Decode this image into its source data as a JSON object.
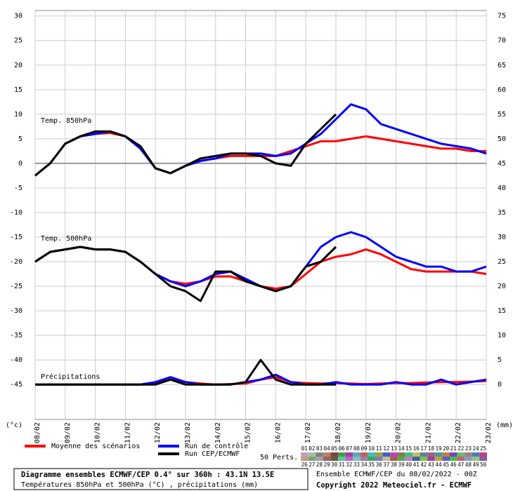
{
  "chart_data": {
    "type": "line",
    "x": [
      0,
      0.5,
      1,
      1.5,
      2,
      2.5,
      3,
      3.5,
      4,
      4.5,
      5,
      5.5,
      6,
      6.5,
      7,
      7.5,
      8,
      8.5,
      9,
      9.5,
      10,
      10.5,
      11,
      11.5,
      12,
      12.5,
      13,
      13.5,
      14,
      14.5,
      15
    ],
    "xlim": [
      0,
      15
    ],
    "xticks": [
      {
        "value": 0,
        "label": "08/02"
      },
      {
        "value": 1,
        "label": "09/02"
      },
      {
        "value": 2,
        "label": "10/02"
      },
      {
        "value": 3,
        "label": "11/02"
      },
      {
        "value": 4,
        "label": "12/02"
      },
      {
        "value": 5,
        "label": "13/02"
      },
      {
        "value": 6,
        "label": "14/02"
      },
      {
        "value": 7,
        "label": "15/02"
      },
      {
        "value": 8,
        "label": "16/02"
      },
      {
        "value": 9,
        "label": "17/02"
      },
      {
        "value": 10,
        "label": "18/02"
      },
      {
        "value": 11,
        "label": "19/02"
      },
      {
        "value": 12,
        "label": "20/02"
      },
      {
        "value": 13,
        "label": "21/02"
      },
      {
        "value": 14,
        "label": "22/02"
      },
      {
        "value": 15,
        "label": "23/02"
      }
    ],
    "ylim": [
      -52.1,
      31.1
    ],
    "yticks": [
      30,
      25,
      20,
      15,
      10,
      5,
      0,
      -5,
      -10,
      -15,
      -20,
      -25,
      -30,
      -35,
      -40,
      -45
    ],
    "y2lim": [
      -7.1,
      76.1
    ],
    "y2ticks": [
      75,
      70,
      65,
      60,
      55,
      50,
      45,
      40,
      35,
      30,
      25,
      20,
      15,
      10,
      5,
      0
    ],
    "ylabel": "(°c)",
    "y2label": "(mm)",
    "grid": true,
    "legend": [
      {
        "name": "Moyenne des scénarios",
        "color": "#ff0000"
      },
      {
        "name": "Run de contrôle",
        "color": "#0000ff"
      },
      {
        "name": "Run CEP/ECMWF",
        "color": "#000000"
      }
    ],
    "panels": [
      {
        "label": "Temp. 850hPa",
        "series": [
          {
            "color": "#ff0000",
            "values": [
              -2.5,
              0,
              4,
              5.5,
              6,
              6.2,
              5.5,
              3,
              -1,
              -2,
              -0.5,
              0.5,
              1,
              1.5,
              1.5,
              1.5,
              1.5,
              2.5,
              3.5,
              4.5,
              4.5,
              5,
              5.5,
              5,
              4.5,
              4,
              3.5,
              3,
              3,
              2.5,
              2.5
            ]
          },
          {
            "color": "#0000ff",
            "values": [
              -2.5,
              0,
              4,
              5.5,
              6,
              6.5,
              5.5,
              3,
              -1,
              -2,
              -0.5,
              0.5,
              1,
              2,
              2,
              2,
              1.5,
              2,
              4,
              6,
              9,
              12,
              11,
              8,
              7,
              6,
              5,
              4,
              3.5,
              3,
              2
            ]
          },
          {
            "color": "#000000",
            "values": [
              -2.5,
              0,
              4,
              5.5,
              6.5,
              6.5,
              5.5,
              3.5,
              -1,
              -2,
              -0.5,
              1,
              1.5,
              2,
              2,
              1.5,
              0,
              -0.5,
              4,
              7,
              10,
              null,
              null,
              null,
              null,
              null,
              null,
              null,
              null,
              null,
              null
            ]
          }
        ]
      },
      {
        "label": "Temp. 500hPa",
        "series": [
          {
            "color": "#ff0000",
            "values": [
              -20,
              -18,
              -17.5,
              -17,
              -17.5,
              -17.5,
              -18,
              -20,
              -22.5,
              -24,
              -24.5,
              -24,
              -23,
              -23,
              -24,
              -25,
              -25.5,
              -25,
              -22.5,
              -20,
              -19,
              -18.5,
              -17.5,
              -18.5,
              -20,
              -21.5,
              -22,
              -22,
              -22,
              -22,
              -22.5
            ]
          },
          {
            "color": "#0000ff",
            "values": [
              -20,
              -18,
              -17.5,
              -17,
              -17.5,
              -17.5,
              -18,
              -20,
              -22.5,
              -24,
              -25,
              -24,
              -22.5,
              -22,
              -23.5,
              -25,
              -26,
              -25,
              -21,
              -17,
              -15,
              -14,
              -15,
              -17,
              -19,
              -20,
              -21,
              -21,
              -22,
              -22,
              -21
            ]
          },
          {
            "color": "#000000",
            "values": [
              -20,
              -18,
              -17.5,
              -17,
              -17.5,
              -17.5,
              -18,
              -20,
              -22.5,
              -25,
              -26,
              -28,
              -22,
              -22,
              -24,
              -25,
              -26,
              -25,
              -21,
              -20,
              -17,
              null,
              null,
              null,
              null,
              null,
              null,
              null,
              null,
              null,
              null
            ]
          }
        ]
      },
      {
        "label": "Précipitations",
        "series": [
          {
            "color": "#ff0000",
            "axis": "y2",
            "values": [
              0,
              0,
              0,
              0,
              0,
              0,
              0,
              0,
              0.3,
              1,
              0.5,
              0.2,
              0,
              0.1,
              0.2,
              1,
              1.5,
              0.5,
              0.3,
              0.2,
              0.3,
              0.2,
              0.1,
              0.2,
              0.3,
              0.3,
              0.4,
              0.5,
              0.5,
              0.6,
              0.7
            ]
          },
          {
            "color": "#0000ff",
            "axis": "y2",
            "values": [
              0,
              0,
              0,
              0,
              0,
              0,
              0,
              0,
              0.5,
              1.5,
              0.5,
              0,
              0,
              0,
              0.5,
              1,
              2,
              0.5,
              0,
              0,
              0.5,
              0,
              0,
              0,
              0.5,
              0,
              0,
              1,
              0,
              0.5,
              1
            ]
          },
          {
            "color": "#000000",
            "axis": "y2",
            "values": [
              0,
              0,
              0,
              0,
              0,
              0,
              0,
              0,
              0,
              1,
              0,
              0,
              0,
              0,
              0.5,
              5,
              1,
              0,
              0,
              0,
              0,
              null,
              null,
              null,
              null,
              null,
              null,
              null,
              null,
              null,
              null
            ]
          }
        ]
      }
    ],
    "perts": {
      "label": "50 Perts.",
      "names": [
        "01",
        "02",
        "03",
        "04",
        "05",
        "06",
        "07",
        "08",
        "09",
        "10",
        "11",
        "12",
        "13",
        "14",
        "15",
        "16",
        "17",
        "18",
        "19",
        "20",
        "21",
        "22",
        "23",
        "24",
        "25",
        "26",
        "27",
        "28",
        "29",
        "30",
        "31",
        "32",
        "33",
        "34",
        "35",
        "36",
        "37",
        "38",
        "39",
        "40",
        "41",
        "42",
        "43",
        "44",
        "45",
        "46",
        "47",
        "48",
        "49",
        "50"
      ],
      "colors": [
        "#c0a0c0",
        "#a0c0a0",
        "#808080",
        "#c08060",
        "#804040",
        "#40a040",
        "#a040a0",
        "#60a0c0",
        "#c06060",
        "#40c0c0",
        "#a0a040",
        "#4060c0",
        "#c040c0",
        "#808040",
        "#40c080",
        "#c0c060",
        "#6080a0",
        "#a06080",
        "#40a0a0",
        "#c08040",
        "#8040c0",
        "#60c060",
        "#a08080",
        "#4080c0",
        "#c04080",
        "#c0a080",
        "#80a080",
        "#a0a0a0",
        "#a06060",
        "#606040",
        "#60c0a0",
        "#c060c0",
        "#80c0c0",
        "#a080a0",
        "#40a060",
        "#8080c0",
        "#c0c0a0",
        "#a06040",
        "#60a060",
        "#c080c0",
        "#4060a0",
        "#80c040",
        "#a040a0",
        "#c0a040",
        "#6060c0",
        "#40c040",
        "#c06080",
        "#80a0c0",
        "#a0c080",
        "#8060a0"
      ]
    },
    "title": "Diagramme ensembles ECMWF/CEP 0.4° sur 360h : 43.1N 13.5E",
    "subtitle": "Températures 850hPa et 500hPa (°C) , précipitations (mm)",
    "run_info": "Ensemble ECMWF/CEP du 08/02/2022 - 00Z",
    "copyright": "Copyright 2022 Meteociel.fr - ECMWF"
  }
}
